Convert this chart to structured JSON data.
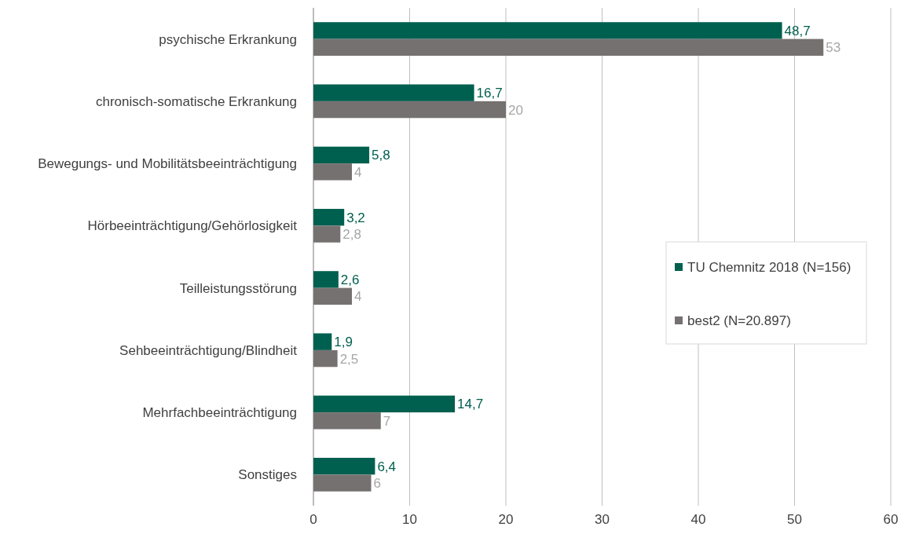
{
  "chart_data": {
    "type": "bar",
    "orientation": "horizontal",
    "categories": [
      "psychische Erkrankung",
      "chronisch-somatische Erkrankung",
      "Bewegungs- und Mobilitätsbeeinträchtigung",
      "Hörbeeinträchtigung/Gehörlosigkeit",
      "Teilleistungsstörung",
      "Sehbeeinträchtigung/Blindheit",
      "Mehrfachbeeinträchtigung",
      "Sonstiges"
    ],
    "series": [
      {
        "name": "TU Chemnitz 2018 (N=156)",
        "color": "#00604f",
        "values": [
          48.7,
          16.7,
          5.8,
          3.2,
          2.6,
          1.9,
          14.7,
          6.4
        ],
        "value_labels": [
          "48,7",
          "16,7",
          "5,8",
          "3,2",
          "2,6",
          "1,9",
          "14,7",
          "6,4"
        ]
      },
      {
        "name": "best2 (N=20.897)",
        "color": "#767171",
        "values": [
          53,
          20,
          4,
          2.8,
          4,
          2.5,
          7,
          6
        ],
        "value_labels": [
          "53",
          "20",
          "4",
          "2,8",
          "4",
          "2,5",
          "7",
          "6"
        ]
      }
    ],
    "xlim": [
      0,
      60
    ],
    "xticks": [
      0,
      10,
      20,
      30,
      40,
      50,
      60
    ],
    "grid": "x",
    "legend": "right"
  }
}
